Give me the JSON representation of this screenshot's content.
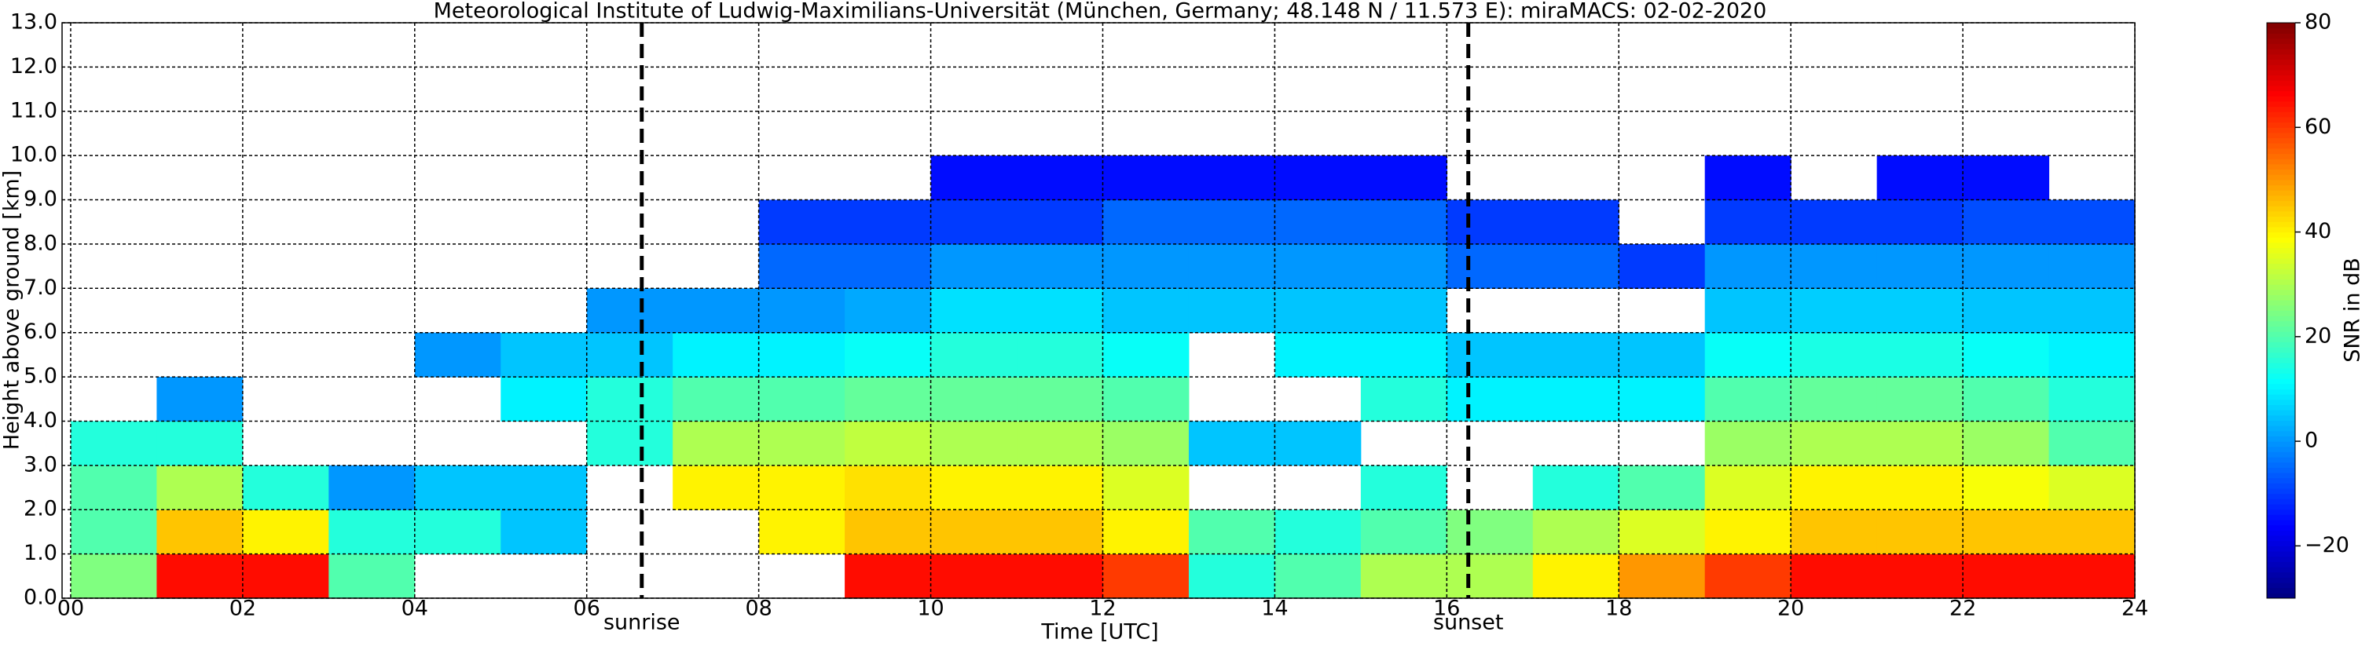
{
  "chart_data": {
    "type": "heatmap",
    "title": "Meteorological Institute of Ludwig-Maximilians-Universität (München, Germany; 48.148 N / 11.573 E):    miraMACS: 02-02-2020",
    "xlabel": "Time [UTC]",
    "ylabel": "Height above ground [km]",
    "colorbar_label": "SNR in dB",
    "colormap": "jet",
    "grid": true,
    "xlim": [
      -0.1,
      24
    ],
    "ylim": [
      0,
      13
    ],
    "clim": [
      -30,
      80
    ],
    "xticks": [
      {
        "value": 0,
        "label": "00"
      },
      {
        "value": 2,
        "label": "02"
      },
      {
        "value": 4,
        "label": "04"
      },
      {
        "value": 6,
        "label": "06"
      },
      {
        "value": 8,
        "label": "08"
      },
      {
        "value": 10,
        "label": "10"
      },
      {
        "value": 12,
        "label": "12"
      },
      {
        "value": 14,
        "label": "14"
      },
      {
        "value": 16,
        "label": "16"
      },
      {
        "value": 18,
        "label": "18"
      },
      {
        "value": 20,
        "label": "20"
      },
      {
        "value": 22,
        "label": "22"
      },
      {
        "value": 24,
        "label": "24"
      }
    ],
    "yticks": [
      {
        "value": 0,
        "label": "0.0"
      },
      {
        "value": 1,
        "label": "1.0"
      },
      {
        "value": 2,
        "label": "2.0"
      },
      {
        "value": 3,
        "label": "3.0"
      },
      {
        "value": 4,
        "label": "4.0"
      },
      {
        "value": 5,
        "label": "5.0"
      },
      {
        "value": 6,
        "label": "6.0"
      },
      {
        "value": 7,
        "label": "7.0"
      },
      {
        "value": 8,
        "label": "8.0"
      },
      {
        "value": 9,
        "label": "9.0"
      },
      {
        "value": 10,
        "label": "10.0"
      },
      {
        "value": 11,
        "label": "11.0"
      },
      {
        "value": 12,
        "label": "12.0"
      },
      {
        "value": 13,
        "label": "13.0"
      }
    ],
    "cticks": [
      {
        "value": -20,
        "label": "−20"
      },
      0,
      20,
      40,
      60,
      80
    ],
    "annotations": [
      {
        "label": "sunrise",
        "x": 6.64
      },
      {
        "label": "sunset",
        "x": 16.25
      }
    ],
    "x_bins": [
      0,
      1,
      2,
      3,
      4,
      5,
      6,
      7,
      8,
      9,
      10,
      11,
      12,
      13,
      14,
      15,
      16,
      17,
      18,
      19,
      20,
      21,
      22,
      23,
      24
    ],
    "y_bins": [
      0,
      1,
      2,
      3,
      4,
      5,
      6,
      7,
      8,
      9,
      10,
      11,
      12,
      13
    ],
    "values": [
      [
        25,
        20,
        20,
        15,
        null,
        null,
        null,
        null,
        null,
        null,
        null,
        null,
        null
      ],
      [
        65,
        45,
        30,
        15,
        0,
        null,
        null,
        null,
        null,
        null,
        null,
        null,
        null
      ],
      [
        65,
        40,
        15,
        null,
        null,
        null,
        null,
        null,
        null,
        null,
        null,
        null,
        null
      ],
      [
        20,
        15,
        0,
        null,
        null,
        null,
        null,
        null,
        null,
        null,
        null,
        null,
        null
      ],
      [
        null,
        15,
        5,
        null,
        null,
        0,
        null,
        null,
        null,
        null,
        null,
        null,
        null
      ],
      [
        null,
        5,
        5,
        null,
        10,
        5,
        null,
        null,
        null,
        null,
        null,
        null,
        null
      ],
      [
        null,
        null,
        null,
        15,
        15,
        5,
        0,
        null,
        null,
        null,
        null,
        null,
        null
      ],
      [
        null,
        null,
        40,
        30,
        20,
        10,
        0,
        null,
        null,
        null,
        null,
        null,
        null
      ],
      [
        null,
        40,
        40,
        30,
        20,
        10,
        0,
        -5,
        -10,
        null,
        null,
        null,
        null
      ],
      [
        65,
        45,
        42,
        32,
        22,
        12,
        2,
        -5,
        -10,
        null,
        null,
        null,
        null
      ],
      [
        65,
        45,
        40,
        30,
        22,
        15,
        8,
        0,
        -10,
        -15,
        null,
        null,
        null
      ],
      [
        65,
        45,
        40,
        30,
        22,
        15,
        8,
        0,
        -10,
        -15,
        null,
        null,
        null
      ],
      [
        60,
        40,
        35,
        28,
        20,
        12,
        5,
        0,
        -5,
        -15,
        null,
        null,
        null
      ],
      [
        15,
        20,
        null,
        5,
        null,
        null,
        5,
        0,
        -5,
        -15,
        null,
        null,
        null
      ],
      [
        20,
        15,
        null,
        5,
        null,
        10,
        5,
        0,
        -5,
        -15,
        null,
        null,
        null
      ],
      [
        30,
        20,
        15,
        null,
        15,
        10,
        5,
        0,
        -5,
        -15,
        null,
        null,
        null
      ],
      [
        30,
        25,
        null,
        null,
        10,
        5,
        null,
        -5,
        -10,
        null,
        null,
        null,
        null
      ],
      [
        40,
        30,
        15,
        null,
        10,
        5,
        null,
        -5,
        -10,
        null,
        null,
        null,
        null
      ],
      [
        50,
        35,
        20,
        null,
        10,
        5,
        null,
        -10,
        null,
        null,
        null,
        null,
        null
      ],
      [
        60,
        40,
        35,
        28,
        20,
        12,
        5,
        0,
        -10,
        -15,
        null,
        null,
        null
      ],
      [
        65,
        45,
        40,
        30,
        22,
        14,
        6,
        0,
        -10,
        null,
        null,
        null,
        null
      ],
      [
        65,
        45,
        40,
        30,
        22,
        14,
        6,
        0,
        -10,
        -15,
        null,
        null,
        null
      ],
      [
        65,
        45,
        38,
        28,
        20,
        12,
        5,
        0,
        -8,
        -15,
        null,
        null,
        null
      ],
      [
        65,
        45,
        35,
        20,
        15,
        10,
        5,
        0,
        -8,
        null,
        null,
        null,
        null
      ]
    ]
  }
}
